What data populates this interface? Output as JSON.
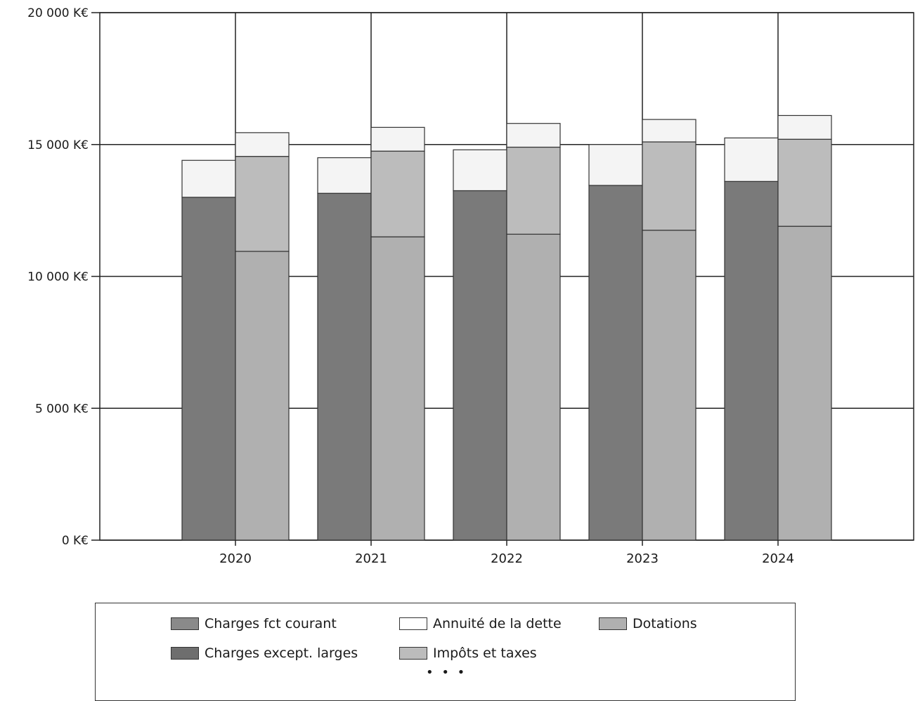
{
  "chart_data": {
    "type": "bar",
    "stacked": true,
    "grouped": true,
    "categories": [
      "2020",
      "2021",
      "2022",
      "2023",
      "2024"
    ],
    "ylim": [
      0,
      20000
    ],
    "yticks": [
      {
        "value": 0,
        "label": "0 K€"
      },
      {
        "value": 5000,
        "label": "5 000 K€"
      },
      {
        "value": 10000,
        "label": "10 000 K€"
      },
      {
        "value": 15000,
        "label": "15 000 K€"
      },
      {
        "value": 20000,
        "label": "20 000 K€"
      }
    ],
    "grid": true,
    "legend_position": "bottom",
    "stacks": [
      {
        "series": [
          {
            "name": "Charges except. larges",
            "color": "#7a7a7a",
            "values": [
              13000,
              13150,
              13250,
              13450,
              13600
            ]
          },
          {
            "name": "Annuité de la dette",
            "color": "#f4f4f4",
            "values": [
              1400,
              1350,
              1550,
              1550,
              1650
            ]
          }
        ]
      },
      {
        "series": [
          {
            "name": "Dotations",
            "color": "#b0b0b0",
            "values": [
              10950,
              11500,
              11600,
              11750,
              11900
            ]
          },
          {
            "name": "Impôts et taxes",
            "color": "#bcbcbc",
            "values": [
              3600,
              3250,
              3300,
              3350,
              3300
            ]
          },
          {
            "name": "Annuité de la dette",
            "color": "#f4f4f4",
            "values": [
              900,
              900,
              900,
              850,
              900
            ]
          }
        ]
      }
    ],
    "legend": [
      {
        "label": "Charges fct courant",
        "color": "#8a8a8a"
      },
      {
        "label": "Annuité de la dette",
        "color": "#ffffff"
      },
      {
        "label": "Dotations",
        "color": "#b0b0b0"
      },
      {
        "label": "Charges except. larges",
        "color": "#6e6e6e"
      },
      {
        "label": "Impôts et taxes",
        "color": "#bcbcbc"
      }
    ],
    "legend_more": "• • •"
  }
}
